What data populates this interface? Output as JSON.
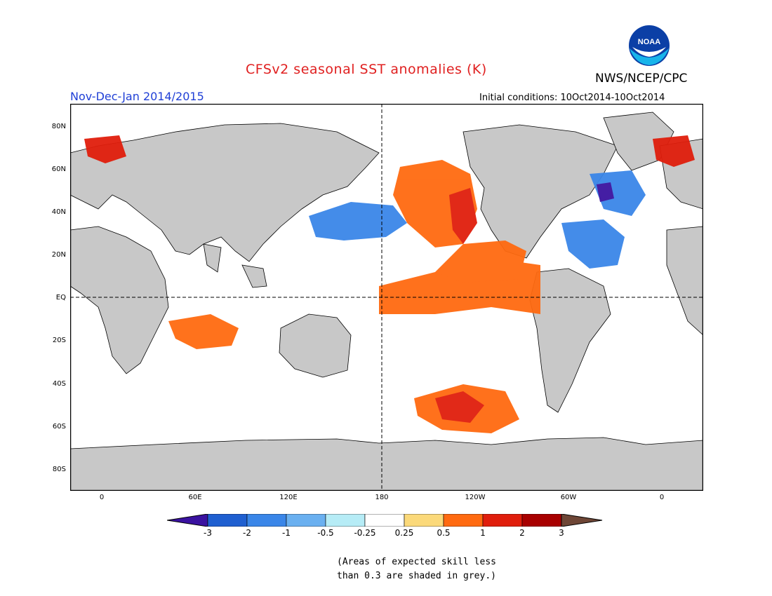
{
  "title": "CFSv2 seasonal SST anomalies (K)",
  "agency": "NWS/NCEP/CPC",
  "logo_text": "NOAA",
  "period": "Nov-Dec-Jan 2014/2015",
  "initial_conditions": "Initial conditions: 10Oct2014-10Oct2014",
  "lat_labels": [
    "80N",
    "60N",
    "40N",
    "20N",
    "EQ",
    "20S",
    "40S",
    "60S",
    "80S"
  ],
  "lon_labels": [
    "0",
    "60E",
    "120E",
    "180",
    "120W",
    "60W",
    "0"
  ],
  "colorbar": {
    "tick_labels": [
      "-3",
      "-2",
      "-1",
      "-0.5",
      "-0.25",
      "0.25",
      "0.5",
      "1",
      "2",
      "3"
    ],
    "colors": [
      "#3a12a0",
      "#1f5fd0",
      "#3a86e8",
      "#6ab0f0",
      "#b6ecf6",
      "#ffffff",
      "#fbd97a",
      "#ff6a10",
      "#e01e0c",
      "#a80000",
      "#6e4636"
    ]
  },
  "note_line1": "(Areas of expected skill less",
  "note_line2": "than 0.3 are shaded in grey.)"
}
